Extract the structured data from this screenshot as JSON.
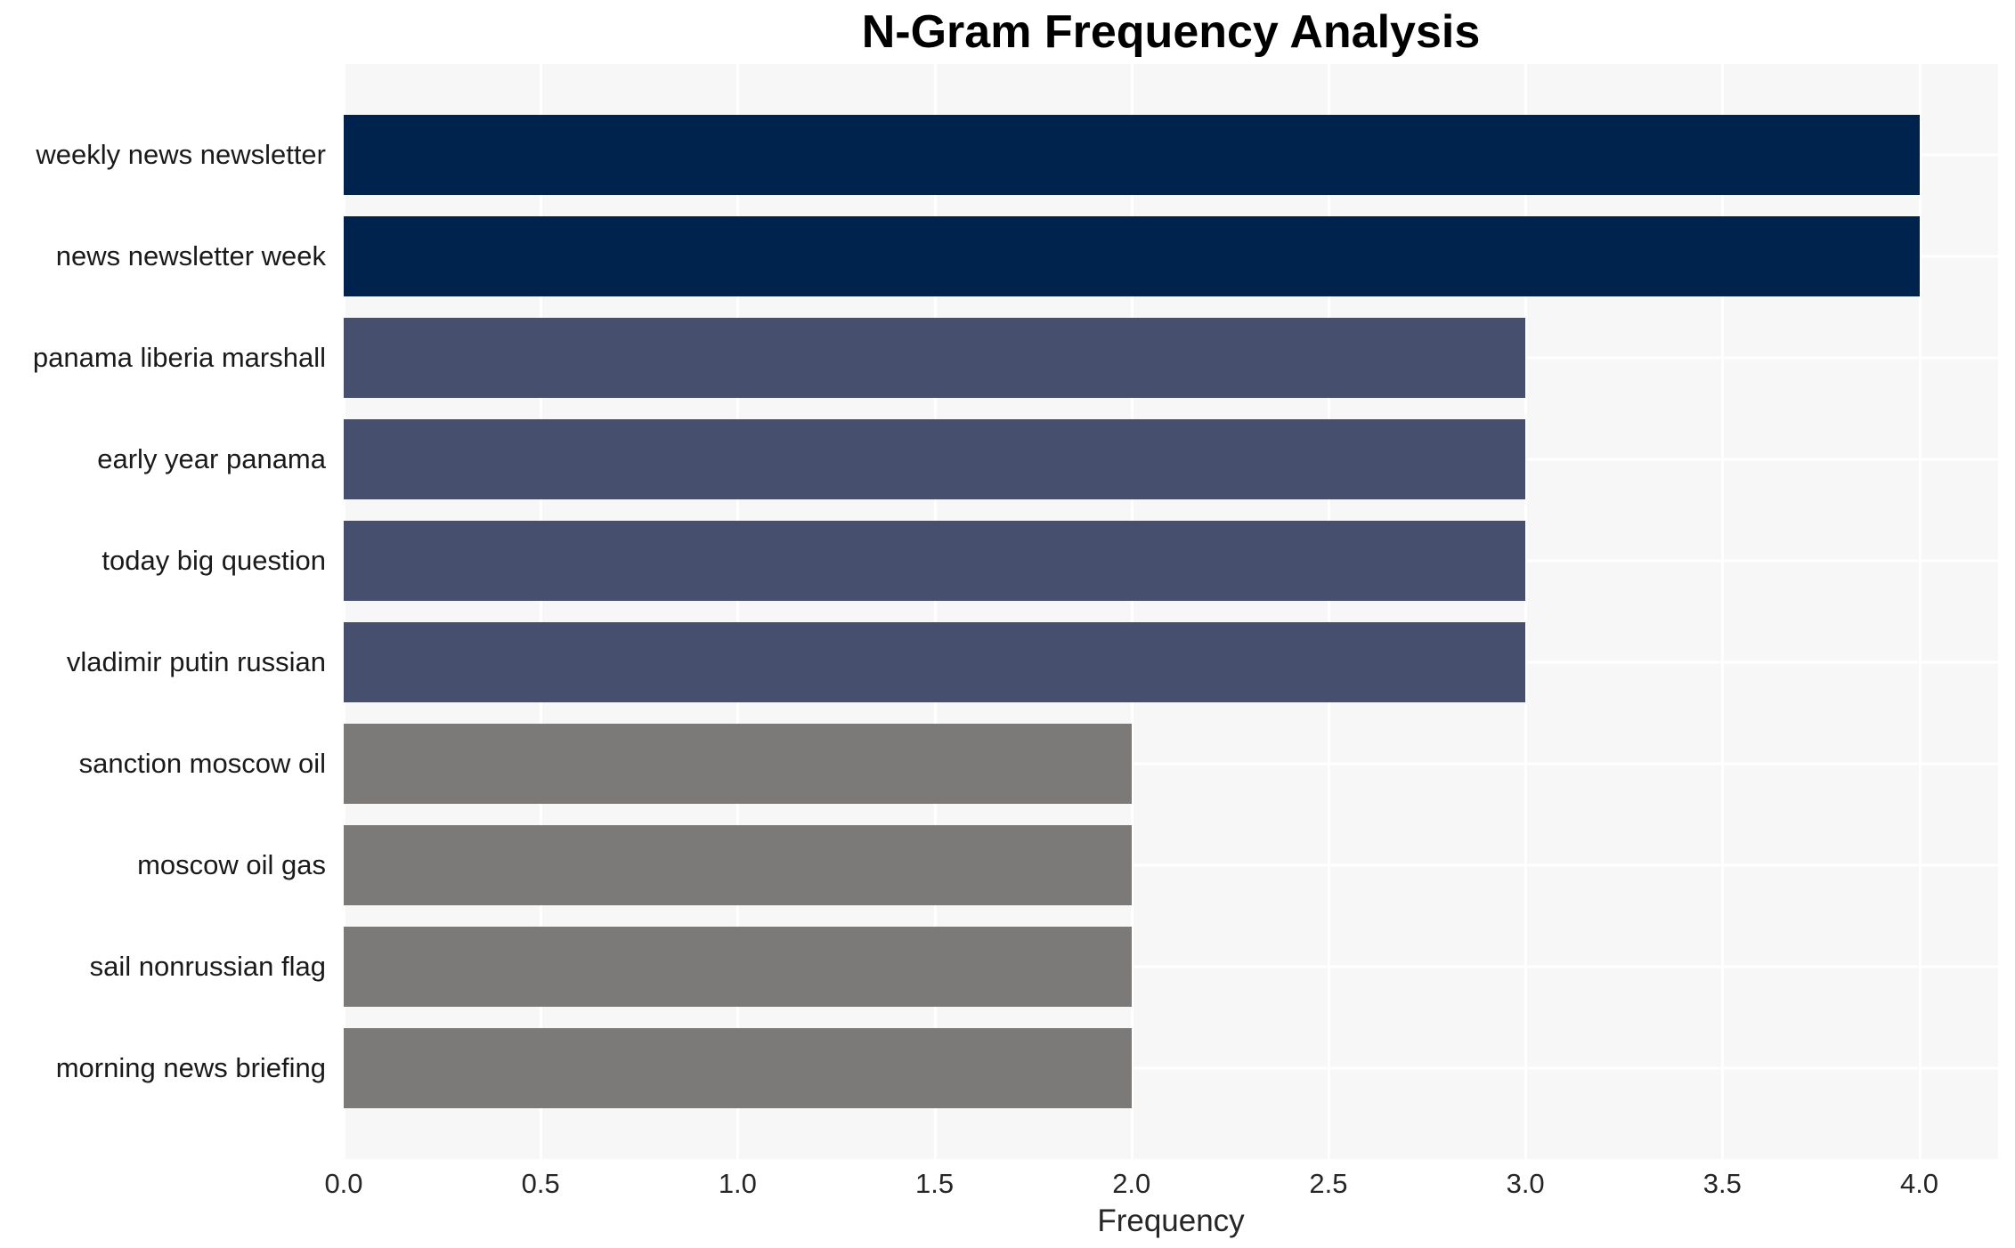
{
  "chart_data": {
    "type": "bar",
    "orientation": "horizontal",
    "title": "N-Gram Frequency Analysis",
    "xlabel": "Frequency",
    "ylabel": "",
    "categories": [
      "weekly news newsletter",
      "news newsletter week",
      "panama liberia marshall",
      "early year panama",
      "today big question",
      "vladimir putin russian",
      "sanction moscow oil",
      "moscow oil gas",
      "sail nonrussian flag",
      "morning news briefing"
    ],
    "values": [
      4,
      4,
      3,
      3,
      3,
      3,
      2,
      2,
      2,
      2
    ],
    "bar_colors": [
      "#00234d",
      "#00234d",
      "#46506e",
      "#46506e",
      "#46506e",
      "#46506e",
      "#7b7a78",
      "#7b7a78",
      "#7b7a78",
      "#7b7a78"
    ],
    "xlim": [
      0,
      4.2
    ],
    "xtick_values": [
      0.0,
      0.5,
      1.0,
      1.5,
      2.0,
      2.5,
      3.0,
      3.5,
      4.0
    ],
    "xtick_labels": [
      "0.0",
      "0.5",
      "1.0",
      "1.5",
      "2.0",
      "2.5",
      "3.0",
      "3.5",
      "4.0"
    ],
    "grid": true,
    "legend": "none",
    "colors": {
      "frequency_4": "#00234d",
      "frequency_3": "#46506e",
      "frequency_2": "#7b7a78",
      "plot_background": "#f7f7f7",
      "gridline": "#ffffff",
      "title_text": "#000000",
      "tick_text": "#262626",
      "category_text": "#1a1a1a"
    }
  }
}
